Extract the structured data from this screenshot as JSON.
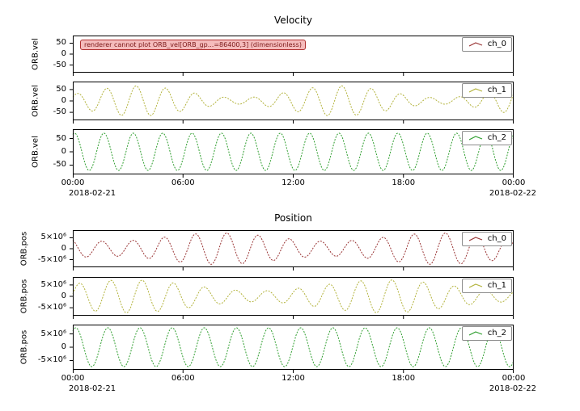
{
  "chart_data": [
    {
      "type": "line",
      "title": "Velocity",
      "ylabel": "ORB.vel",
      "ylim": [
        -85,
        85
      ],
      "yticks": [
        50,
        0,
        -50
      ],
      "ytick_labels": [
        "50",
        "0",
        "-50"
      ],
      "x_range_hours": [
        0,
        24
      ],
      "xtick_labels": [],
      "grid": false,
      "legend_position": "upper right",
      "series": [
        {
          "name": "ch_0",
          "color": "#993333",
          "error": "renderer cannot plot ORB_vel[ORB_gp...=86400,3] (dimensionless)",
          "waveform": null
        }
      ]
    },
    {
      "type": "line",
      "title": "",
      "ylabel": "ORB.vel",
      "ylim": [
        -85,
        85
      ],
      "yticks": [
        50,
        0,
        -50
      ],
      "ytick_labels": [
        "50",
        "0",
        "-50"
      ],
      "x_range_hours": [
        0,
        24
      ],
      "xtick_labels": [],
      "grid": false,
      "legend_position": "upper right",
      "series": [
        {
          "name": "ch_1",
          "color": "#b2b23a",
          "waveform": {
            "period_h": 1.6,
            "phase_rad": 0.6,
            "amp_base": 40,
            "amp_mod": 26,
            "mod_period_h": 11,
            "mod_peak_h": 3.5
          }
        }
      ]
    },
    {
      "type": "line",
      "title": "",
      "ylabel": "ORB.vel",
      "ylim": [
        -85,
        85
      ],
      "yticks": [
        50,
        0,
        -50
      ],
      "ytick_labels": [
        "50",
        "0",
        "-50"
      ],
      "x_range_hours": [
        0,
        24
      ],
      "xtick_labels": [
        "00:00",
        "06:00",
        "12:00",
        "18:00",
        "00:00"
      ],
      "xlabel_dates": [
        "2018-02-21",
        "2018-02-22"
      ],
      "grid": false,
      "legend_position": "upper right",
      "series": [
        {
          "name": "ch_2",
          "color": "#2e9e2e",
          "waveform": {
            "period_h": 1.6,
            "phase_rad": 1.2,
            "amp_base": 70,
            "amp_mod": 0,
            "mod_period_h": 24,
            "mod_peak_h": 0
          }
        }
      ]
    },
    {
      "type": "line",
      "title": "Position",
      "ylabel": "ORB.pos",
      "ylim": [
        -8500000,
        8500000
      ],
      "yticks": [
        5000000,
        0,
        -5000000
      ],
      "ytick_labels": [
        "5×10⁶",
        "0",
        "-5×10⁶"
      ],
      "x_range_hours": [
        0,
        24
      ],
      "xtick_labels": [],
      "grid": false,
      "legend_position": "upper right",
      "series": [
        {
          "name": "ch_0",
          "color": "#993333",
          "waveform": {
            "period_h": 1.7,
            "phase_rad": 2.0,
            "amp_base": 5300000,
            "amp_mod": 1900000,
            "mod_period_h": 12,
            "mod_peak_h": 8
          }
        }
      ]
    },
    {
      "type": "line",
      "title": "",
      "ylabel": "ORB.pos",
      "ylim": [
        -8500000,
        8500000
      ],
      "yticks": [
        5000000,
        0,
        -5000000
      ],
      "ytick_labels": [
        "5×10⁶",
        "0",
        "-5×10⁶"
      ],
      "x_range_hours": [
        0,
        24
      ],
      "xtick_labels": [],
      "grid": false,
      "legend_position": "upper right",
      "series": [
        {
          "name": "ch_1",
          "color": "#b2b23a",
          "waveform": {
            "period_h": 1.7,
            "phase_rad": 0.2,
            "amp_base": 4800000,
            "amp_mod": 2400000,
            "mod_period_h": 14,
            "mod_peak_h": 3
          }
        }
      ]
    },
    {
      "type": "line",
      "title": "",
      "ylabel": "ORB.pos",
      "ylim": [
        -8500000,
        8500000
      ],
      "yticks": [
        5000000,
        0,
        -5000000
      ],
      "ytick_labels": [
        "5×10⁶",
        "0",
        "-5×10⁶"
      ],
      "x_range_hours": [
        0,
        24
      ],
      "xtick_labels": [
        "00:00",
        "06:00",
        "12:00",
        "18:00",
        "00:00"
      ],
      "xlabel_dates": [
        "2018-02-21",
        "2018-02-22"
      ],
      "grid": false,
      "legend_position": "upper right",
      "series": [
        {
          "name": "ch_2",
          "color": "#2e9e2e",
          "waveform": {
            "period_h": 1.75,
            "phase_rad": 1.0,
            "amp_base": 7300000,
            "amp_mod": 0,
            "mod_period_h": 24,
            "mod_peak_h": 0
          }
        }
      ]
    }
  ]
}
